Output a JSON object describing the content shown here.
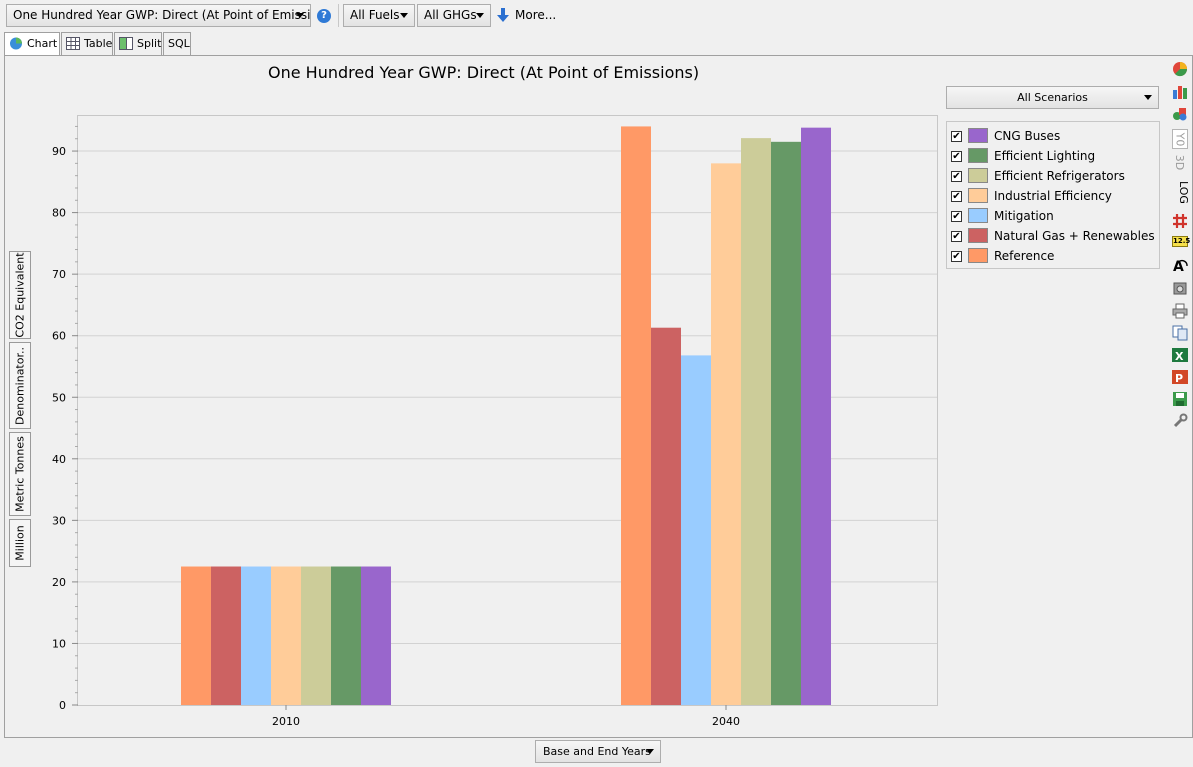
{
  "toolbar": {
    "indicator": "One Hundred Year GWP: Direct (At Point of Emissions)",
    "fuels": "All Fuels",
    "ghgs": "All GHGs",
    "more": "More..."
  },
  "tabs": [
    {
      "label": "Chart",
      "icon": "chart-icon"
    },
    {
      "label": "Table",
      "icon": "table-icon"
    },
    {
      "label": "Split",
      "icon": "split-icon"
    },
    {
      "label": "SQL",
      "icon": ""
    }
  ],
  "side_buttons": [
    "CO2 Equivalent",
    "Denominator..",
    "Metric Tonnes",
    "Million"
  ],
  "scenario_selector": "All Scenarios",
  "bottom_selector": "Base and End Years",
  "right_toolbar": {
    "y0": "Y0",
    "three_d": "3D",
    "log": "LOG",
    "number": "12.5"
  },
  "colors": {
    "Reference": "#ff9966",
    "Natural Gas + Renewables": "#cc6262",
    "Mitigation": "#99ccff",
    "Industrial Efficiency": "#ffcc99",
    "Efficient Refrigerators": "#cccc99",
    "Efficient Lighting": "#669966",
    "CNG Buses": "#9966cc"
  },
  "chart_data": {
    "type": "bar",
    "title": "One Hundred Year GWP: Direct (At Point of Emissions)",
    "xlabel": "",
    "ylabel": "",
    "categories": [
      "2010",
      "2040"
    ],
    "ylim": [
      0,
      95
    ],
    "yticks": [
      0,
      10,
      20,
      30,
      40,
      50,
      60,
      70,
      80,
      90
    ],
    "grid": true,
    "legend_position": "right",
    "series": [
      {
        "name": "Reference",
        "values": [
          22.5,
          94.0
        ]
      },
      {
        "name": "Natural Gas + Renewables",
        "values": [
          22.5,
          61.3
        ]
      },
      {
        "name": "Mitigation",
        "values": [
          22.5,
          56.8
        ]
      },
      {
        "name": "Industrial Efficiency",
        "values": [
          22.5,
          88.0
        ]
      },
      {
        "name": "Efficient Refrigerators",
        "values": [
          22.5,
          92.1
        ]
      },
      {
        "name": "Efficient Lighting",
        "values": [
          22.5,
          91.5
        ]
      },
      {
        "name": "CNG Buses",
        "values": [
          22.5,
          93.8
        ]
      }
    ],
    "legend_order": [
      "CNG Buses",
      "Efficient Lighting",
      "Efficient Refrigerators",
      "Industrial Efficiency",
      "Mitigation",
      "Natural Gas + Renewables",
      "Reference"
    ]
  }
}
